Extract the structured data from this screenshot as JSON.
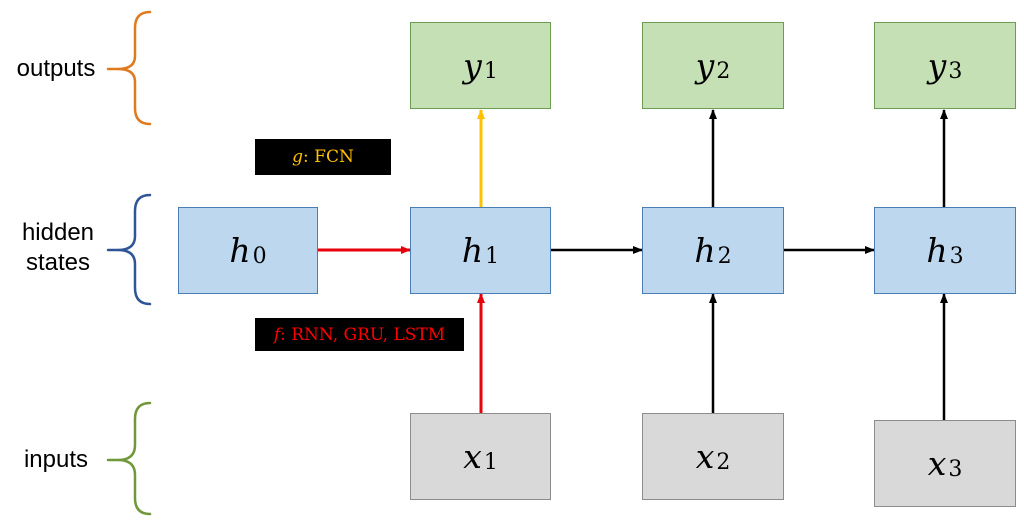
{
  "groups": {
    "outputs": "outputs",
    "hidden": [
      "hidden",
      "states"
    ],
    "inputs": "inputs"
  },
  "nodes": {
    "y1": {
      "base": "y",
      "sub": "1"
    },
    "y2": {
      "base": "y",
      "sub": "2"
    },
    "y3": {
      "base": "y",
      "sub": "3"
    },
    "h0": {
      "base": "h",
      "sub": "0"
    },
    "h1": {
      "base": "h",
      "sub": "1"
    },
    "h2": {
      "base": "h",
      "sub": "2"
    },
    "h3": {
      "base": "h",
      "sub": "3"
    },
    "x1": {
      "base": "x",
      "sub": "1"
    },
    "x2": {
      "base": "x",
      "sub": "2"
    },
    "x3": {
      "base": "x",
      "sub": "3"
    }
  },
  "functions": {
    "g": {
      "symbol": "g",
      "text": ": FCN",
      "color": "#ffc000"
    },
    "f": {
      "symbol": "f",
      "text": ": RNN, GRU, LSTM",
      "color": "#ff0000"
    }
  },
  "colors": {
    "outputs_brace": "#e07a1f",
    "hidden_brace": "#2f5597",
    "inputs_brace": "#70983a",
    "arrow_default": "#000000",
    "arrow_f": "#e8000b",
    "arrow_g": "#ffc000"
  }
}
